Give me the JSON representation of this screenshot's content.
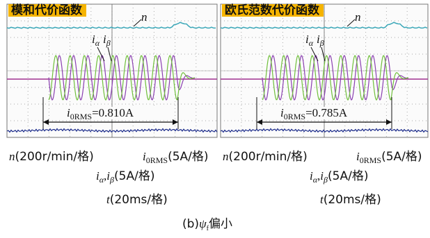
{
  "panels": [
    {
      "title": "模和代价函数",
      "speed_label": "n",
      "current_labels": [
        "α",
        "β"
      ],
      "current_symbol": "i",
      "rms": {
        "symbol": "i",
        "subscript": "0RMS",
        "value": "=0.810A"
      },
      "scales": {
        "speed": {
          "symbol": "n",
          "unit": "(200r/min/格)"
        },
        "rms": {
          "symbol": "i",
          "subscript": "0RMS",
          "unit": "(5A/格)"
        },
        "current": {
          "symbol1": "i",
          "sub1": "α",
          "sep": ",",
          "symbol2": "i",
          "sub2": "β",
          "unit": "(5A/格)"
        },
        "time": {
          "symbol": "t",
          "unit": "(20ms/格)"
        }
      }
    },
    {
      "title": "欧氏范数代价函数",
      "speed_label": "n",
      "current_labels": [
        "α",
        "β"
      ],
      "current_symbol": "i",
      "rms": {
        "symbol": "i",
        "subscript": "0RMS",
        "value": "=0.785A"
      },
      "scales": {
        "speed": {
          "symbol": "n",
          "unit": "(200r/min/格)"
        },
        "rms": {
          "symbol": "i",
          "subscript": "0RMS",
          "unit": "(5A/格)"
        },
        "current": {
          "symbol1": "i",
          "sub1": "α",
          "sep": ",",
          "symbol2": "i",
          "sub2": "β",
          "unit": "(5A/格)"
        },
        "time": {
          "symbol": "t",
          "unit": "(20ms/格)"
        }
      }
    }
  ],
  "caption": {
    "label": "(b)",
    "symbol": "ψ",
    "subscript": "f",
    "text": "偏小"
  }
}
